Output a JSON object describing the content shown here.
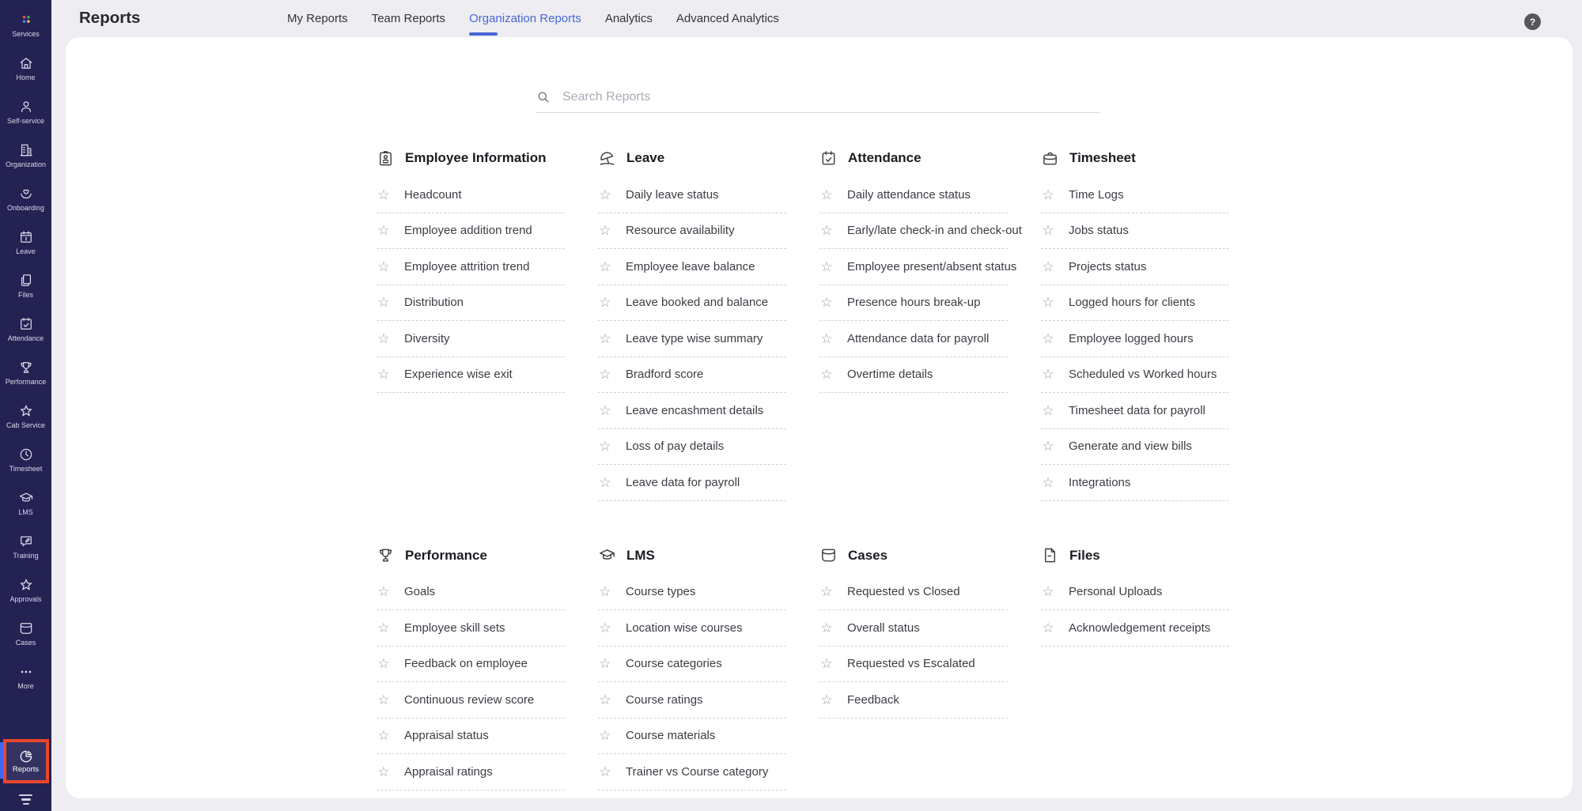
{
  "app": {
    "title": "Reports",
    "help_label": "?"
  },
  "tabs": [
    {
      "label": "My Reports",
      "active": false
    },
    {
      "label": "Team Reports",
      "active": false
    },
    {
      "label": "Organization Reports",
      "active": true
    },
    {
      "label": "Analytics",
      "active": false
    },
    {
      "label": "Advanced Analytics",
      "active": false
    }
  ],
  "search": {
    "placeholder": "Search Reports",
    "icon": "search-icon"
  },
  "sidebar": {
    "items": [
      {
        "label": "Services",
        "icon": "services-grid-icon"
      },
      {
        "label": "Home",
        "icon": "home-icon"
      },
      {
        "label": "Self-service",
        "icon": "person-icon"
      },
      {
        "label": "Organization",
        "icon": "building-icon"
      },
      {
        "label": "Onboarding",
        "icon": "heart-hands-icon"
      },
      {
        "label": "Leave",
        "icon": "calendar-icon"
      },
      {
        "label": "Files",
        "icon": "copy-files-icon"
      },
      {
        "label": "Attendance",
        "icon": "calendar-check-icon"
      },
      {
        "label": "Performance",
        "icon": "trophy-icon"
      },
      {
        "label": "Cab Service",
        "icon": "star-icon"
      },
      {
        "label": "Timesheet",
        "icon": "clock-icon"
      },
      {
        "label": "LMS",
        "icon": "grad-cap-icon"
      },
      {
        "label": "Training",
        "icon": "chat-pencil-icon"
      },
      {
        "label": "Approvals",
        "icon": "star-badge-icon"
      },
      {
        "label": "Cases",
        "icon": "inbox-icon"
      },
      {
        "label": "More",
        "icon": "more-dots-icon"
      }
    ],
    "active_item": {
      "label": "Reports",
      "icon": "pie-chart-icon"
    },
    "collapse_icon": "collapse-menu-icon"
  },
  "categories": [
    {
      "name": "Employee Information",
      "icon": "id-card-icon",
      "items": [
        "Headcount",
        "Employee addition trend",
        "Employee attrition trend",
        "Distribution",
        "Diversity",
        "Experience wise exit"
      ]
    },
    {
      "name": "Leave",
      "icon": "umbrella-icon",
      "items": [
        "Daily leave status",
        "Resource availability",
        "Employee leave balance",
        "Leave booked and balance",
        "Leave type wise summary",
        "Bradford score",
        "Leave encashment details",
        "Loss of pay details",
        "Leave data for payroll"
      ]
    },
    {
      "name": "Attendance",
      "icon": "calendar-check-icon",
      "items": [
        "Daily attendance status",
        "Early/late check-in and check-out",
        "Employee present/absent status",
        "Presence hours break-up",
        "Attendance data for payroll",
        "Overtime details"
      ]
    },
    {
      "name": "Timesheet",
      "icon": "briefcase-icon",
      "items": [
        "Time Logs",
        "Jobs status",
        "Projects status",
        "Logged hours for clients",
        "Employee logged hours",
        "Scheduled vs Worked hours",
        "Timesheet data for payroll",
        "Generate and view bills",
        "Integrations"
      ]
    },
    {
      "name": "Performance",
      "icon": "trophy-icon",
      "items": [
        "Goals",
        "Employee skill sets",
        "Feedback on employee",
        "Continuous review score",
        "Appraisal status",
        "Appraisal ratings"
      ]
    },
    {
      "name": "LMS",
      "icon": "grad-cap-icon",
      "items": [
        "Course types",
        "Location wise courses",
        "Course categories",
        "Course ratings",
        "Course materials",
        "Trainer vs Course category"
      ]
    },
    {
      "name": "Cases",
      "icon": "inbox-icon",
      "items": [
        "Requested vs Closed",
        "Overall status",
        "Requested vs Escalated",
        "Feedback"
      ]
    },
    {
      "name": "Files",
      "icon": "document-icon",
      "items": [
        "Personal Uploads",
        "Acknowledgement receipts"
      ]
    }
  ],
  "colors": {
    "sidebar_bg": "#242153",
    "accent_blue": "#4a66d6",
    "highlight_red": "#e8472c",
    "page_bg": "#ededf2",
    "services_dots": [
      "#e05a4e",
      "#47a44b",
      "#4a7fe8",
      "#e2b44c"
    ]
  }
}
